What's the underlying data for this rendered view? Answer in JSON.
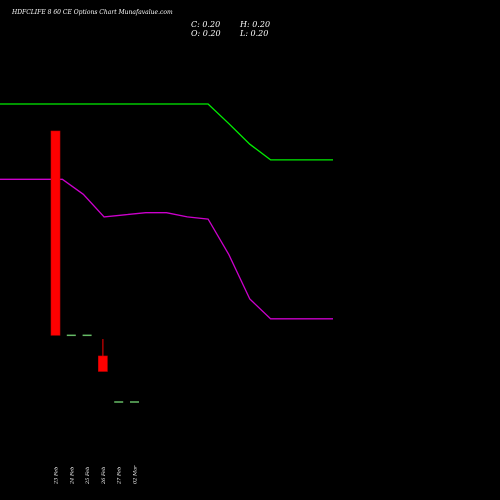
{
  "header": {
    "title": "HDFCLIFE 8          60  CE Options  Chart Munafa",
    "title_suffix": "value.com",
    "close": "C: 0.20",
    "open": "O: 0.20",
    "high": "H: 0.20",
    "low": "L: 0.20"
  },
  "colors": {
    "background": "#000000",
    "bull": "#00cc00",
    "bear": "#ff0000",
    "flat": "#66bb66",
    "ma_green": "#00ee00",
    "ma_purple": "#cc00cc",
    "text": "#ffffff"
  },
  "chart_data": {
    "type": "candlestick",
    "categories": [
      "23 Feb",
      "24 Feb",
      "25 Feb",
      "26 Feb",
      "27 Feb",
      "02 Mar"
    ],
    "candles": [
      {
        "date": "23 Feb",
        "open": 5.4,
        "high": 5.4,
        "low": 0.45,
        "close": 0.45
      },
      {
        "date": "24 Feb",
        "open": 0.45,
        "high": 0.45,
        "low": 0.45,
        "close": 0.45
      },
      {
        "date": "25 Feb",
        "open": 0.45,
        "high": 0.45,
        "low": 0.45,
        "close": 0.45
      },
      {
        "date": "26 Feb",
        "open": 0.35,
        "high": 0.43,
        "low": 0.29,
        "close": 0.29
      },
      {
        "date": "27 Feb",
        "open": 0.2,
        "high": 0.2,
        "low": 0.2,
        "close": 0.2
      },
      {
        "date": "02 Mar",
        "open": 0.2,
        "high": 0.2,
        "low": 0.2,
        "close": 0.2
      }
    ],
    "moving_averages": [
      {
        "color": "green",
        "values": [
          7.5,
          7.5,
          7.5,
          7.5,
          7.5,
          7.5,
          7.5,
          7.5,
          7.5,
          7.5,
          7.5,
          5.9,
          4.6,
          3.8,
          3.8,
          3.8,
          3.8
        ]
      },
      {
        "color": "purple",
        "values": [
          3.0,
          3.0,
          3.0,
          3.0,
          2.5,
          1.9,
          1.95,
          2.0,
          2.0,
          1.9,
          1.85,
          1.2,
          0.7,
          0.55,
          0.55,
          0.55,
          0.55
        ]
      }
    ]
  }
}
